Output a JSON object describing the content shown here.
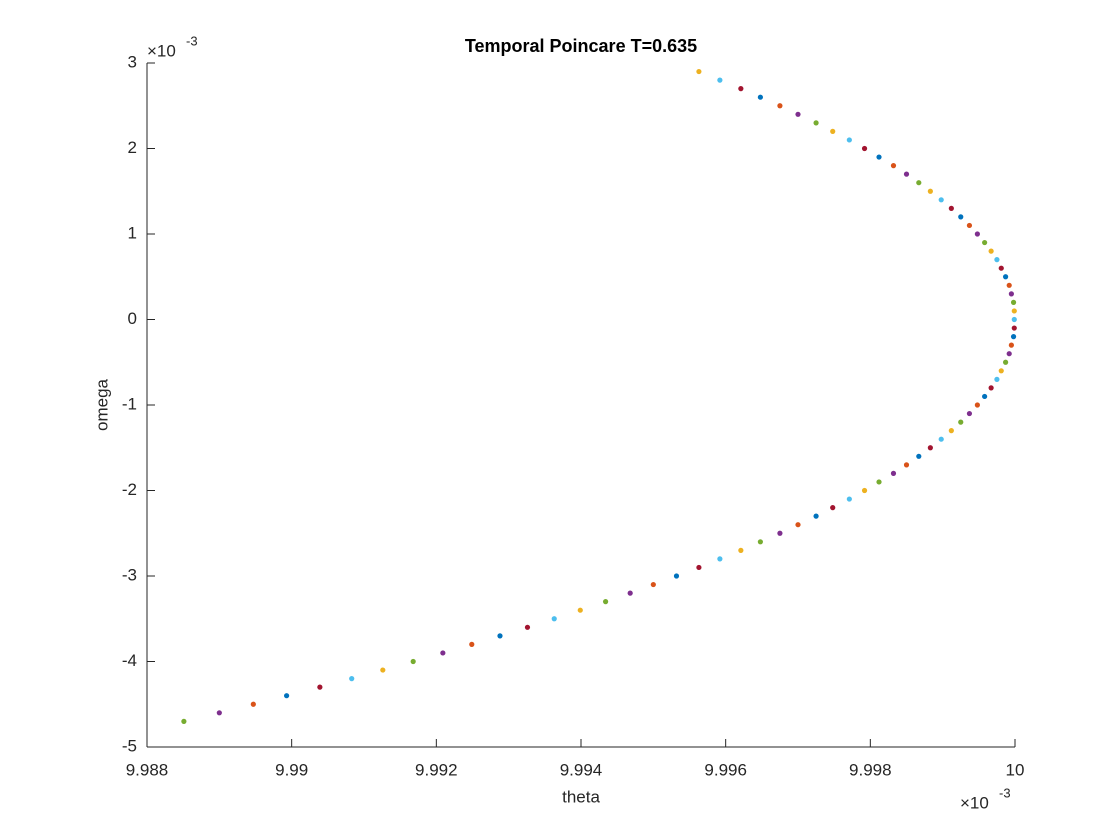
{
  "chart_data": {
    "type": "scatter",
    "title": "Temporal Poincare T=0.635",
    "xlabel": "theta",
    "ylabel": "omega",
    "x_multiplier": {
      "base": "×10",
      "exponent": "-3"
    },
    "y_multiplier": {
      "base": "×10",
      "exponent": "-3"
    },
    "xlim": [
      9.988,
      10
    ],
    "xticks": [
      9.988,
      9.99,
      9.992,
      9.994,
      9.996,
      9.998,
      10
    ],
    "ylim": [
      -5,
      3
    ],
    "yticks": [
      -5,
      -4,
      -3,
      -2,
      -1,
      0,
      1,
      2,
      3
    ],
    "colors": [
      "#edb120",
      "#4dbeee",
      "#a2142f",
      "#0072bd",
      "#d95319",
      "#7e2f8e",
      "#77ac30"
    ],
    "x": [
      9.99563,
      9.99592,
      9.99621,
      9.99648,
      9.99675,
      9.997,
      9.99725,
      9.99748,
      9.99771,
      9.99792,
      9.99812,
      9.99832,
      9.9985,
      9.99867,
      9.99883,
      9.99898,
      9.99912,
      9.99925,
      9.99937,
      9.99948,
      9.99958,
      9.99967,
      9.99975,
      9.99981,
      9.99987,
      9.99992,
      9.99995,
      9.99998,
      9.99999,
      9.99999,
      9.99999,
      9.99998,
      9.99995,
      9.99992,
      9.99987,
      9.99981,
      9.99975,
      9.99967,
      9.99958,
      9.99948,
      9.99937,
      9.99925,
      9.99912,
      9.99898,
      9.99883,
      9.99867,
      9.9985,
      9.99832,
      9.99812,
      9.99792,
      9.99771,
      9.99748,
      9.99725,
      9.997,
      9.99675,
      9.99648,
      9.99621,
      9.99592,
      9.99563,
      9.99532,
      9.995,
      9.99468,
      9.99434,
      9.99399,
      9.99363,
      9.99326,
      9.99288,
      9.99249,
      9.99209,
      9.99168,
      9.99126,
      9.99083,
      9.99039,
      9.98993,
      9.98947,
      9.989,
      9.98851
    ],
    "y": [
      2.9,
      2.8,
      2.7,
      2.6,
      2.5,
      2.4,
      2.3,
      2.2,
      2.1,
      2.0,
      1.9,
      1.8,
      1.7,
      1.6,
      1.5,
      1.4,
      1.3,
      1.2,
      1.1,
      1.0,
      0.9,
      0.8,
      0.7,
      0.6,
      0.5,
      0.4,
      0.3,
      0.2,
      0.1,
      0,
      -0.1,
      -0.2,
      -0.3,
      -0.4,
      -0.5,
      -0.6,
      -0.7,
      -0.8,
      -0.9,
      -1.0,
      -1.1,
      -1.2,
      -1.3,
      -1.4,
      -1.5,
      -1.6,
      -1.7,
      -1.8,
      -1.9,
      -2.0,
      -2.1,
      -2.2,
      -2.3,
      -2.4,
      -2.5,
      -2.6,
      -2.7,
      -2.8,
      -2.9,
      -3.0,
      -3.1,
      -3.2,
      -3.3,
      -3.4,
      -3.5,
      -3.6,
      -3.7,
      -3.8,
      -3.9,
      -4.0,
      -4.1,
      -4.2,
      -4.3,
      -4.4,
      -4.5,
      -4.6,
      -4.7
    ]
  }
}
